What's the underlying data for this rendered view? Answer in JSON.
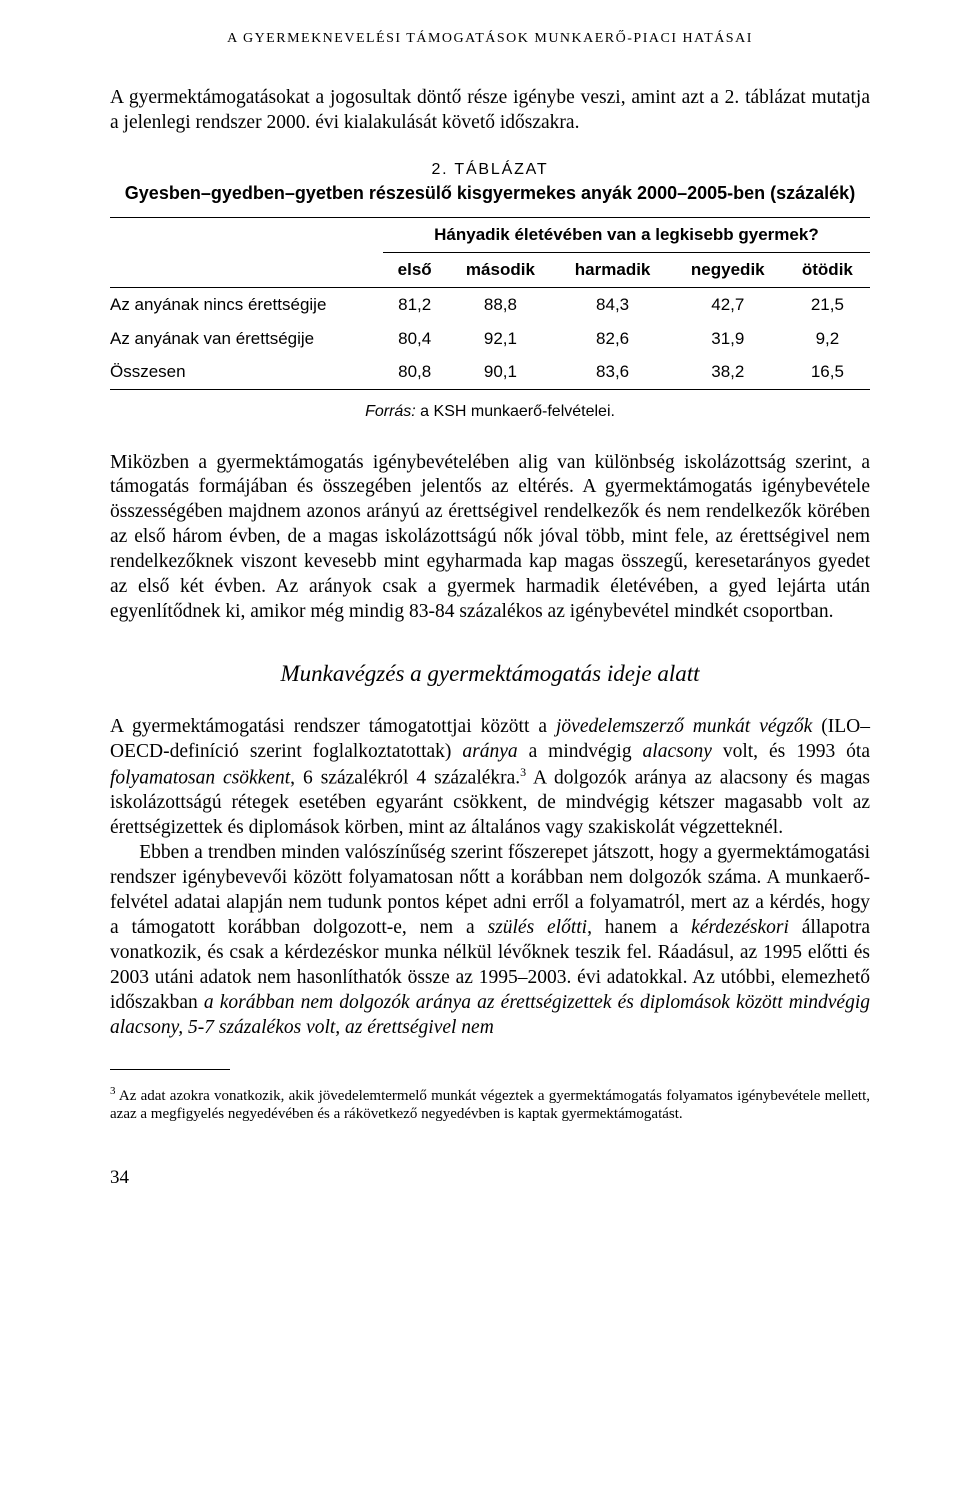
{
  "running_head": "A GYERMEKNEVELÉSI TÁMOGATÁSOK MUNKAERŐ-PIACI HATÁSAI",
  "para1": "A gyermektámogatásokat a jogosultak döntő része igénybe veszi, amint azt a 2. táblázat mutatja a jelenlegi rendszer 2000. évi kialakulását követő időszakra.",
  "table": {
    "caption_line1": "2. TÁBLÁZAT",
    "caption_line2": "Gyesben–gyedben–gyetben részesülő kisgyermekes anyák 2000–2005-ben (százalék)",
    "super_header": "Hányadik életévében van a legkisebb gyermek?",
    "columns": [
      "első",
      "második",
      "harmadik",
      "negyedik",
      "ötödik"
    ],
    "rows": [
      {
        "label": "Az anyának nincs érettségije",
        "values": [
          "81,2",
          "88,8",
          "84,3",
          "42,7",
          "21,5"
        ]
      },
      {
        "label": "Az anyának van érettségije",
        "values": [
          "80,4",
          "92,1",
          "82,6",
          "31,9",
          "9,2"
        ]
      },
      {
        "label": "Összesen",
        "values": [
          "80,8",
          "90,1",
          "83,6",
          "38,2",
          "16,5"
        ]
      }
    ],
    "source_label": "Forrás:",
    "source_text": " a KSH munkaerő-felvételei.",
    "colors": {
      "rule": "#000000",
      "text": "#000000",
      "background": "#ffffff"
    },
    "font_family": "Helvetica Neue / Arial",
    "font_size_pt": 12
  },
  "para2": "Miközben a gyermektámogatás igénybevételében alig van különbség iskolázottság szerint, a támogatás formájában és összegében jelentős az eltérés. A gyermektámogatás igénybevétele összességében majdnem azonos arányú az érettségivel rendelkezők és nem rendelkezők körében az első három évben, de a magas iskolázottságú nők jóval több, mint fele, az érettségivel nem rendelkezőknek viszont kevesebb mint egyharmada kap magas összegű, keresetarányos gyedet az első két évben. Az arányok csak a gyermek harmadik életévében, a gyed lejárta után egyenlítődnek ki, amikor még mindig 83-84 százalékos az igénybevétel mindkét csoportban.",
  "subheading": "Munkavégzés a gyermektámogatás ideje alatt",
  "para3_a": "A gyermektámogatási rendszer támogatottjai között a ",
  "para3_em1": "jövedelemszerző munkát végzők",
  "para3_b": " (ILO–OECD-definíció szerint foglalkoztatottak) ",
  "para3_em2": "aránya",
  "para3_c": " a mindvégig ",
  "para3_em3": "alacsony",
  "para3_d": " volt, és 1993 óta ",
  "para3_em4": "folyamatosan csökkent",
  "para3_e": ", 6 százalékról 4 százalékra.",
  "para3_refmark": "3",
  "para3_f": " A dolgozók aránya az alacsony és magas iskolázottságú rétegek esetében egyaránt csökkent, de mindvégig kétszer magasabb volt az érettségizettek és diplomások körben, mint az általános vagy szakiskolát végzetteknél.",
  "para4_a": "Ebben a trendben minden valószínűség szerint főszerepet játszott, hogy a gyermektámogatási rendszer igénybevevői között folyamatosan nőtt a korábban nem dolgozók száma. A munkaerő-felvétel adatai alapján nem tudunk pontos képet adni erről a folyamatról, mert az a kérdés, hogy a támogatott korábban dolgozott-e, nem a ",
  "para4_em1": "szülés előtti",
  "para4_b": ", hanem a ",
  "para4_em2": "kérdezéskori",
  "para4_c": " állapotra vonatkozik, és csak a kérdezéskor munka nélkül lévőknek teszik fel. Ráadásul, az 1995 előtti és 2003 utáni adatok nem hasonlíthatók össze az 1995–2003. évi adatokkal. Az utóbbi, elemezhető időszakban ",
  "para4_em3": "a korábban nem dolgozók aránya az érettségizettek és diplomások között mindvégig alacsony, 5-7 százalékos volt, az érettségivel nem",
  "footnote_mark": "3",
  "footnote_text": " Az adat azokra vonatkozik, akik jövedelemtermelő munkát végeztek a gyermektámogatás folyamatos igénybevétele mellett, azaz a megfigyelés negyedévében és a rákövetkező negyedévben is kaptak gyermektámogatást.",
  "page_number": "34",
  "typography": {
    "body_font": "Times New Roman",
    "body_fontsize_pt": 14,
    "heading_fontsize_pt": 17,
    "running_head_fontsize_pt": 10,
    "footnote_fontsize_pt": 11
  }
}
